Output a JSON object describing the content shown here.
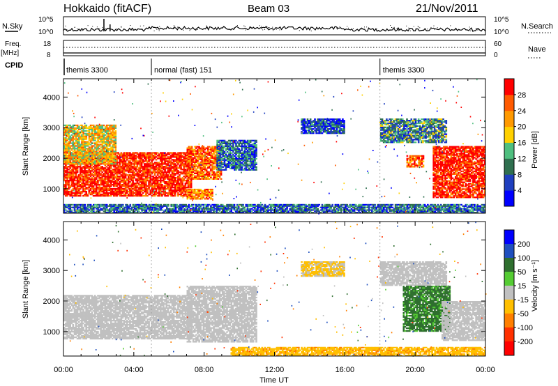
{
  "header": {
    "station": "Hokkaido (fitACF)",
    "beam": "Beam 03",
    "date": "21/Nov/2011"
  },
  "top_panel": {
    "nsky_label": "N.Sky",
    "nsky_ticks": [
      "10^5",
      "10^0"
    ],
    "nsearch_label": "N.Search",
    "nsearch_ticks": [
      "10^5",
      "10^0"
    ]
  },
  "freq_panel": {
    "freq_label": "Freq.",
    "freq_unit": "[MHz]",
    "freq_ticks": [
      "18",
      "8"
    ],
    "nave_label": "Nave",
    "nave_ticks": [
      "60",
      "0"
    ]
  },
  "cpid_panel": {
    "label": "CPID",
    "modes": [
      {
        "name": "themis 3300",
        "start_hour": 0.0
      },
      {
        "name": "normal (fast) 151",
        "start_hour": 5.0
      },
      {
        "name": "themis 3300",
        "start_hour": 18.0
      }
    ]
  },
  "colors": {
    "power_scale": [
      "#0000ff",
      "#1f3fbf",
      "#2f6f4f",
      "#4fbf7f",
      "#ffd000",
      "#ff9900",
      "#ff5a00",
      "#ff0000"
    ],
    "velocity_scale": [
      "#0000ff",
      "#1f4fbf",
      "#2f6f2f",
      "#55cc33",
      "#c0c0c0",
      "#ffbf00",
      "#ff7f00",
      "#ff3000",
      "#ff0000"
    ]
  },
  "chart_data": [
    {
      "type": "heatmap",
      "name": "power",
      "xlabel": "",
      "ylabel": "Slant Range [km]",
      "y_ticks": [
        "1000",
        "2000",
        "3000",
        "4000"
      ],
      "ylim": [
        200,
        4600
      ],
      "colorbar_label": "Power [dB]",
      "colorbar_ticks": [
        "4",
        "8",
        "12",
        "16",
        "20",
        "24",
        "28"
      ],
      "colorbar_range": [
        0,
        30
      ],
      "echo_regions": [
        {
          "t0": 0.0,
          "t1": 7.3,
          "r0": 750,
          "r1": 2200,
          "level": 28
        },
        {
          "t0": 0.0,
          "t1": 3.0,
          "r0": 1800,
          "r1": 3100,
          "level": 18
        },
        {
          "t0": 7.0,
          "t1": 9.0,
          "r0": 1300,
          "r1": 2400,
          "level": 24
        },
        {
          "t0": 7.0,
          "t1": 8.5,
          "r0": 650,
          "r1": 1000,
          "level": 22
        },
        {
          "t0": 8.7,
          "t1": 11.0,
          "r0": 1600,
          "r1": 2600,
          "level": 8
        },
        {
          "t0": 13.5,
          "t1": 16.0,
          "r0": 2800,
          "r1": 3300,
          "level": 6
        },
        {
          "t0": 18.0,
          "t1": 21.8,
          "r0": 2500,
          "r1": 3300,
          "level": 10
        },
        {
          "t0": 19.5,
          "t1": 20.5,
          "r0": 1700,
          "r1": 2100,
          "level": 24
        },
        {
          "t0": 21.0,
          "t1": 24.0,
          "r0": 700,
          "r1": 2400,
          "level": 28
        },
        {
          "t0": 0.0,
          "t1": 24.0,
          "r0": 200,
          "r1": 500,
          "level": 8
        }
      ]
    },
    {
      "type": "heatmap",
      "name": "velocity",
      "xlabel": "Time UT",
      "ylabel": "Slant Range [km]",
      "x_ticks": [
        "00:00",
        "04:00",
        "08:00",
        "12:00",
        "16:00",
        "20:00",
        "00:00"
      ],
      "xlim": [
        0,
        24
      ],
      "y_ticks": [
        "1000",
        "2000",
        "3000",
        "4000"
      ],
      "ylim": [
        200,
        4600
      ],
      "colorbar_label": "Velocity [m s⁻¹]",
      "colorbar_ticks": [
        "200",
        "100",
        "50",
        "15",
        "-15",
        "-50",
        "-100",
        "-200"
      ],
      "colorbar_range": [
        -250,
        250
      ],
      "echo_regions": [
        {
          "t0": 0.0,
          "t1": 7.3,
          "r0": 750,
          "r1": 2200,
          "level": 0
        },
        {
          "t0": 7.0,
          "t1": 11.0,
          "r0": 650,
          "r1": 2500,
          "level": 0
        },
        {
          "t0": 13.5,
          "t1": 16.0,
          "r0": 2800,
          "r1": 3300,
          "level": -20
        },
        {
          "t0": 18.0,
          "t1": 21.8,
          "r0": 2500,
          "r1": 3300,
          "level": 0
        },
        {
          "t0": 19.3,
          "t1": 22.0,
          "r0": 1000,
          "r1": 2500,
          "level": 40
        },
        {
          "t0": 21.5,
          "t1": 24.0,
          "r0": 700,
          "r1": 2000,
          "level": 0
        },
        {
          "t0": 9.5,
          "t1": 24.0,
          "r0": 200,
          "r1": 500,
          "level": -40
        }
      ]
    }
  ]
}
